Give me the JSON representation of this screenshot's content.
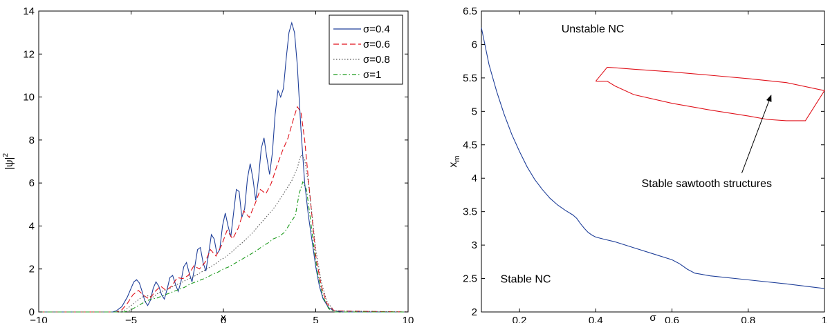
{
  "chart_data": [
    {
      "type": "line",
      "title": "",
      "xlabel": "x",
      "ylabel": "|ψ|",
      "ylabel_sup": "2",
      "xlim": [
        -10,
        10
      ],
      "ylim": [
        0,
        14
      ],
      "xticks": [
        -10,
        -5,
        0,
        5,
        10
      ],
      "yticks": [
        0,
        2,
        4,
        6,
        8,
        10,
        12,
        14
      ],
      "xtick_labels": [
        "−10",
        "−5",
        "0",
        "5",
        "10"
      ],
      "ytick_labels": [
        "0",
        "2",
        "4",
        "6",
        "8",
        "10",
        "12",
        "14"
      ],
      "grid": false,
      "legend": "top-right",
      "series": [
        {
          "name": "σ=0.4",
          "color": "#1f3f99",
          "dash": "solid",
          "x": [
            -10,
            -6,
            -5.8,
            -5.5,
            -5.2,
            -5,
            -4.85,
            -4.7,
            -4.55,
            -4.4,
            -4.25,
            -4.1,
            -3.95,
            -3.8,
            -3.65,
            -3.5,
            -3.35,
            -3.2,
            -3.05,
            -2.9,
            -2.75,
            -2.6,
            -2.45,
            -2.3,
            -2.15,
            -2,
            -1.85,
            -1.7,
            -1.55,
            -1.4,
            -1.25,
            -1.1,
            -0.95,
            -0.8,
            -0.65,
            -0.5,
            -0.35,
            -0.2,
            -0.05,
            0.1,
            0.25,
            0.4,
            0.55,
            0.7,
            0.85,
            1,
            1.15,
            1.3,
            1.45,
            1.6,
            1.75,
            1.9,
            2.05,
            2.2,
            2.35,
            2.5,
            2.65,
            2.8,
            2.95,
            3.1,
            3.25,
            3.4,
            3.55,
            3.7,
            3.85,
            4,
            4.2,
            4.4,
            4.6,
            4.8,
            5,
            5.2,
            5.4,
            5.7,
            6,
            6.5,
            10
          ],
          "y": [
            0,
            0,
            0.05,
            0.25,
            0.7,
            1.1,
            1.4,
            1.5,
            1.35,
            0.95,
            0.5,
            0.3,
            0.55,
            1.1,
            1.4,
            1.2,
            0.8,
            0.6,
            1.05,
            1.6,
            1.7,
            1.3,
            0.95,
            1.4,
            2.1,
            2.3,
            1.8,
            1.4,
            2.1,
            2.9,
            3.0,
            2.3,
            1.9,
            2.7,
            3.6,
            3.4,
            2.7,
            2.9,
            4.0,
            4.6,
            4.0,
            3.5,
            4.6,
            5.7,
            5.6,
            4.4,
            4.8,
            6.2,
            6.9,
            6.2,
            5.2,
            6.2,
            7.6,
            8.1,
            7.2,
            6.4,
            7.4,
            9.2,
            10.3,
            10.0,
            10.4,
            11.8,
            13.0,
            13.45,
            13.0,
            11.5,
            8.5,
            6.0,
            4.5,
            3.3,
            2.1,
            1.2,
            0.6,
            0.2,
            0.05,
            0,
            0
          ]
        },
        {
          "name": "σ=0.6",
          "color": "#e0121b",
          "dash": "8,4",
          "x": [
            -10,
            -5.8,
            -5.5,
            -5.2,
            -4.9,
            -4.6,
            -4.3,
            -4.0,
            -3.7,
            -3.4,
            -3.1,
            -2.8,
            -2.5,
            -2.2,
            -1.9,
            -1.6,
            -1.3,
            -1.0,
            -0.7,
            -0.4,
            -0.1,
            0.2,
            0.5,
            0.8,
            1.1,
            1.4,
            1.7,
            2.0,
            2.3,
            2.6,
            2.9,
            3.2,
            3.5,
            3.8,
            4.0,
            4.2,
            4.4,
            4.6,
            4.8,
            5.0,
            5.3,
            5.6,
            6.0,
            10
          ],
          "y": [
            0,
            0,
            0.1,
            0.4,
            0.8,
            1.0,
            0.75,
            0.6,
            0.95,
            1.2,
            1.0,
            1.2,
            1.6,
            1.55,
            1.7,
            2.15,
            2.0,
            2.3,
            2.9,
            2.6,
            3.1,
            3.8,
            3.4,
            3.9,
            4.7,
            4.4,
            5.0,
            5.7,
            5.5,
            6.0,
            6.8,
            7.5,
            8.1,
            9.0,
            9.55,
            9.3,
            8.0,
            6.2,
            4.4,
            2.6,
            1.2,
            0.4,
            0.05,
            0
          ]
        },
        {
          "name": "σ=0.8",
          "color": "#555555",
          "dash": "1.5,2.5",
          "x": [
            -10,
            -5.6,
            -5.3,
            -5.0,
            -4.7,
            -4.4,
            -4.1,
            -3.8,
            -3.5,
            -3.2,
            -2.9,
            -2.6,
            -2.3,
            -2.0,
            -1.7,
            -1.4,
            -1.1,
            -0.8,
            -0.5,
            -0.2,
            0.1,
            0.4,
            0.7,
            1.0,
            1.3,
            1.6,
            1.9,
            2.2,
            2.5,
            2.8,
            3.1,
            3.4,
            3.7,
            4.0,
            4.2,
            4.4,
            4.6,
            4.8,
            5.0,
            5.3,
            5.6,
            6.0,
            10
          ],
          "y": [
            0,
            0,
            0.1,
            0.3,
            0.5,
            0.7,
            0.75,
            0.7,
            0.9,
            1.0,
            1.1,
            1.25,
            1.35,
            1.5,
            1.6,
            1.75,
            1.9,
            2.05,
            2.2,
            2.4,
            2.55,
            2.75,
            3.0,
            3.2,
            3.45,
            3.7,
            4.0,
            4.3,
            4.6,
            4.9,
            5.3,
            5.7,
            6.1,
            6.7,
            7.3,
            7.1,
            6.0,
            4.5,
            2.9,
            1.4,
            0.5,
            0.05,
            0
          ]
        },
        {
          "name": "σ=1",
          "color": "#1c9a1c",
          "dash": "6,3,1.5,3",
          "x": [
            -10,
            -5.4,
            -5.1,
            -4.8,
            -4.5,
            -4.2,
            -3.9,
            -3.6,
            -3.3,
            -3.0,
            -2.7,
            -2.4,
            -2.1,
            -1.8,
            -1.5,
            -1.2,
            -0.9,
            -0.6,
            -0.3,
            0,
            0.3,
            0.6,
            0.9,
            1.2,
            1.5,
            1.8,
            2.1,
            2.4,
            2.7,
            3.0,
            3.3,
            3.6,
            3.9,
            4.1,
            4.3,
            4.5,
            4.7,
            4.9,
            5.1,
            5.4,
            5.7,
            6.0,
            10
          ],
          "y": [
            0,
            0,
            0.05,
            0.2,
            0.35,
            0.5,
            0.6,
            0.65,
            0.75,
            0.85,
            0.95,
            1.05,
            1.15,
            1.3,
            1.4,
            1.5,
            1.6,
            1.75,
            1.85,
            2.0,
            2.1,
            2.25,
            2.4,
            2.55,
            2.7,
            2.85,
            3.05,
            3.2,
            3.4,
            3.5,
            3.7,
            4.1,
            4.5,
            5.5,
            6.05,
            5.7,
            4.4,
            3.0,
            1.8,
            0.7,
            0.15,
            0,
            0
          ]
        }
      ]
    },
    {
      "type": "line",
      "title": "",
      "xlabel": "σ",
      "ylabel": "x",
      "ylabel_sub": "m",
      "xlim": [
        0.1,
        1
      ],
      "ylim": [
        2,
        6.5
      ],
      "xticks": [
        0.2,
        0.4,
        0.6,
        0.8,
        1
      ],
      "yticks": [
        2,
        2.5,
        3,
        3.5,
        4,
        4.5,
        5,
        5.5,
        6,
        6.5
      ],
      "xtick_labels": [
        "0.2",
        "0.4",
        "0.6",
        "0.8",
        "1"
      ],
      "ytick_labels": [
        "2",
        "2.5",
        "3",
        "3.5",
        "4",
        "4.5",
        "5",
        "5.5",
        "6",
        "6.5"
      ],
      "grid": false,
      "legend": "none",
      "series": [
        {
          "color": "#1f3f99",
          "x": [
            0.1,
            0.12,
            0.14,
            0.16,
            0.18,
            0.2,
            0.22,
            0.24,
            0.26,
            0.28,
            0.3,
            0.32,
            0.34,
            0.35,
            0.36,
            0.37,
            0.38,
            0.39,
            0.4,
            0.42,
            0.45,
            0.5,
            0.55,
            0.6,
            0.62,
            0.64,
            0.66,
            0.68,
            0.7,
            0.8,
            0.9,
            1.0
          ],
          "y": [
            6.25,
            5.7,
            5.3,
            4.95,
            4.65,
            4.4,
            4.17,
            3.98,
            3.83,
            3.7,
            3.6,
            3.52,
            3.45,
            3.4,
            3.32,
            3.25,
            3.19,
            3.15,
            3.12,
            3.09,
            3.05,
            2.96,
            2.87,
            2.78,
            2.72,
            2.64,
            2.58,
            2.56,
            2.54,
            2.48,
            2.42,
            2.35
          ]
        },
        {
          "color": "#e0121b",
          "x": [
            0.4,
            0.43,
            0.5,
            0.6,
            0.7,
            0.8,
            0.9,
            1.0,
            0.95,
            0.9,
            0.85,
            0.8,
            0.7,
            0.6,
            0.5,
            0.45,
            0.43,
            0.4
          ],
          "y": [
            5.45,
            5.66,
            5.63,
            5.59,
            5.54,
            5.49,
            5.43,
            5.31,
            4.86,
            4.86,
            4.88,
            4.93,
            5.02,
            5.12,
            5.25,
            5.38,
            5.45,
            5.45
          ]
        }
      ],
      "annotations": [
        {
          "text": "Unstable NC",
          "x": 0.31,
          "y": 6.18
        },
        {
          "text": "Stable NC",
          "x": 0.15,
          "y": 2.44
        },
        {
          "text": "Stable sawtooth structures",
          "x": 0.52,
          "y": 3.87,
          "arrow_to": [
            0.86,
            5.24
          ]
        }
      ]
    }
  ]
}
